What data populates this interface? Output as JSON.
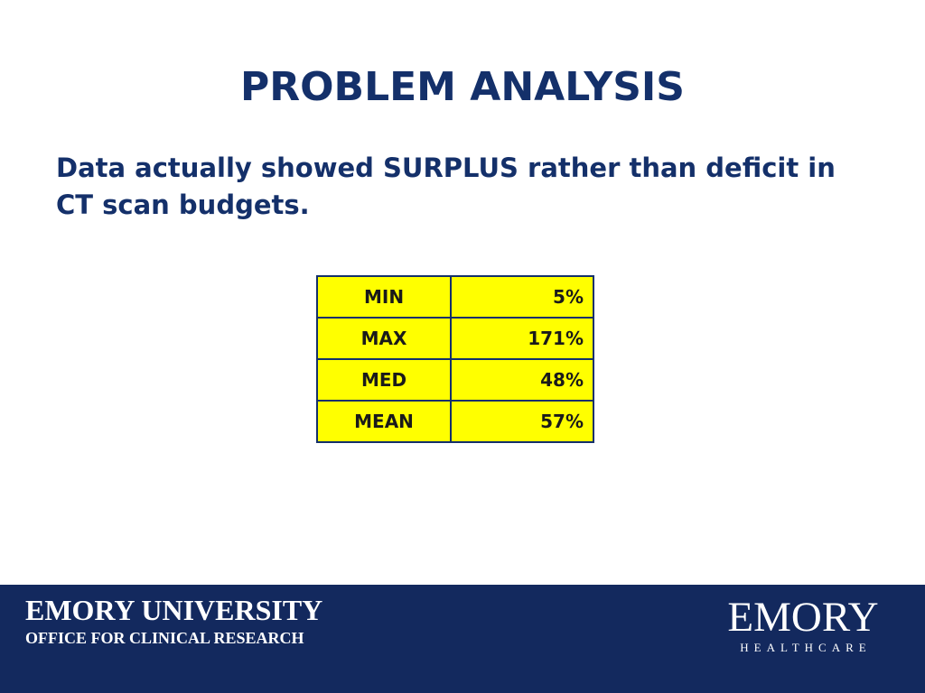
{
  "slide": {
    "title": "PROBLEM ANALYSIS",
    "body": "Data actually showed SURPLUS rather than deficit in CT scan budgets."
  },
  "table": {
    "rows": [
      {
        "label": "MIN",
        "value": "5%"
      },
      {
        "label": "MAX",
        "value": "171%"
      },
      {
        "label": "MED",
        "value": "48%"
      },
      {
        "label": "MEAN",
        "value": "57%"
      }
    ]
  },
  "footer": {
    "org": "EMORY UNIVERSITY",
    "office": "OFFICE FOR CLINICAL RESEARCH",
    "logo_main": "EMORY",
    "logo_sub": "HEALTHCARE"
  },
  "colors": {
    "title": "#14306a",
    "footer_bg": "#13295e",
    "table_fill": "#ffff00"
  }
}
